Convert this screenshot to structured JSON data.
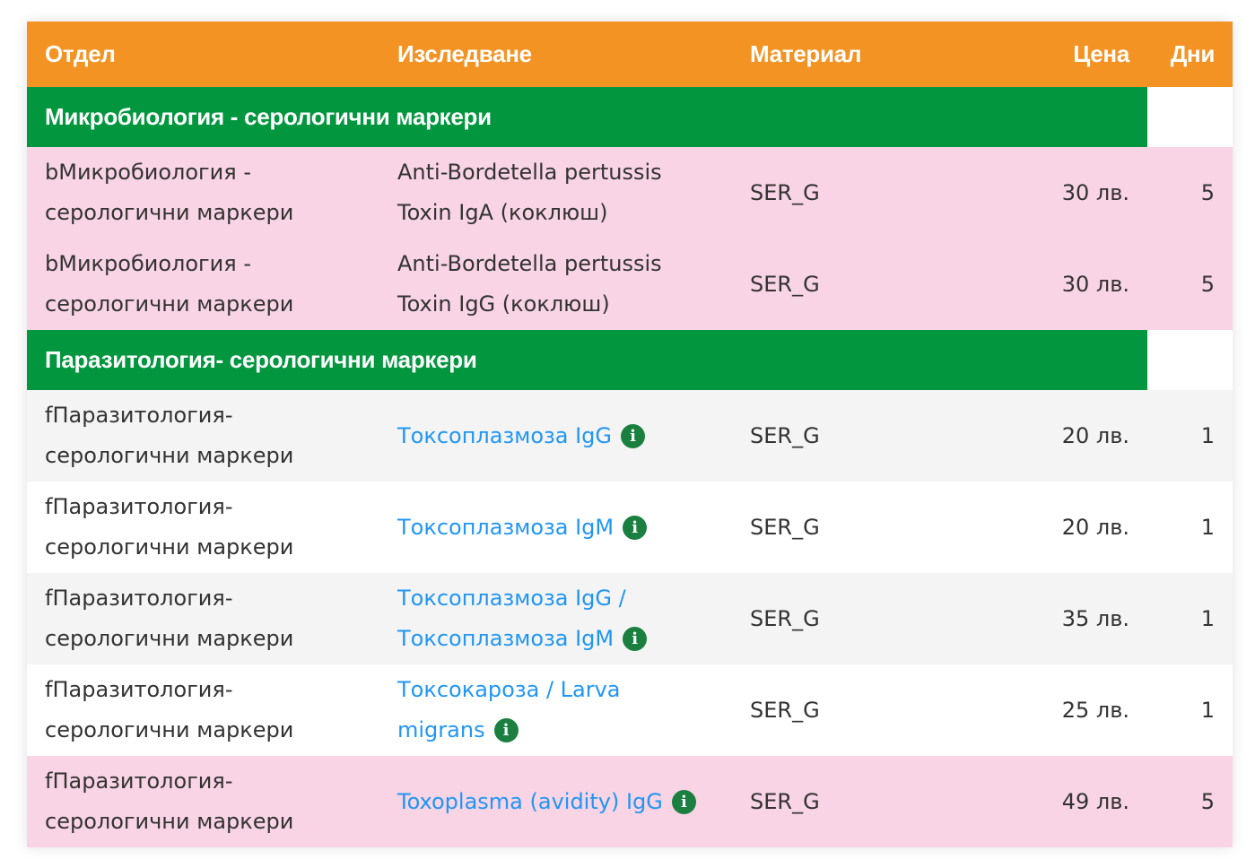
{
  "headers": {
    "department": "Отдел",
    "test": "Изследване",
    "material": "Материал",
    "price": "Цена",
    "days": "Дни"
  },
  "colors": {
    "header": "#f39323",
    "group": "#02963f",
    "pink_row": "#f9d4e5",
    "gray_row": "#f4f4f4",
    "link": "#2196f3",
    "info_icon": "#1a7f3f"
  },
  "groups": [
    {
      "title": "Микробиология - серологични маркери",
      "rows": [
        {
          "department": "bМикробиология - серологични маркери",
          "test": "Anti-Bordetella pertussis Toxin IgA (коклюш)",
          "link": false,
          "info": false,
          "material": "SER_G",
          "price": "30 лв.",
          "days": "5",
          "bg": "pink"
        },
        {
          "department": "bМикробиология - серологични маркери",
          "test": "Anti-Bordetella pertussis Toxin IgG (коклюш)",
          "link": false,
          "info": false,
          "material": "SER_G",
          "price": "30 лв.",
          "days": "5",
          "bg": "pink"
        }
      ]
    },
    {
      "title": "Паразитология- серологични маркери",
      "rows": [
        {
          "department": "fПаразитология- серологични маркери",
          "test": "Токсоплазмоза IgG",
          "link": true,
          "info": true,
          "material": "SER_G",
          "price": "20 лв.",
          "days": "1",
          "bg": "gray"
        },
        {
          "department": "fПаразитология- серологични маркери",
          "test": "Токсоплазмоза IgM",
          "link": true,
          "info": true,
          "material": "SER_G",
          "price": "20 лв.",
          "days": "1",
          "bg": "white"
        },
        {
          "department": "fПаразитология- серологични маркери",
          "test": "Токсоплазмоза IgG / Токсоплазмоза IgM",
          "link": true,
          "info": true,
          "material": "SER_G",
          "price": "35 лв.",
          "days": "1",
          "bg": "gray"
        },
        {
          "department": "fПаразитология- серологични маркери",
          "test": "Токсокароза / Larva migrans",
          "link": true,
          "info": true,
          "material": "SER_G",
          "price": "25 лв.",
          "days": "1",
          "bg": "white"
        },
        {
          "department": "fПаразитология- серологични маркери",
          "test": "Toxoplasma (avidity) IgG",
          "link": true,
          "info": true,
          "material": "SER_G",
          "price": "49 лв.",
          "days": "5",
          "bg": "pink"
        }
      ]
    }
  ]
}
